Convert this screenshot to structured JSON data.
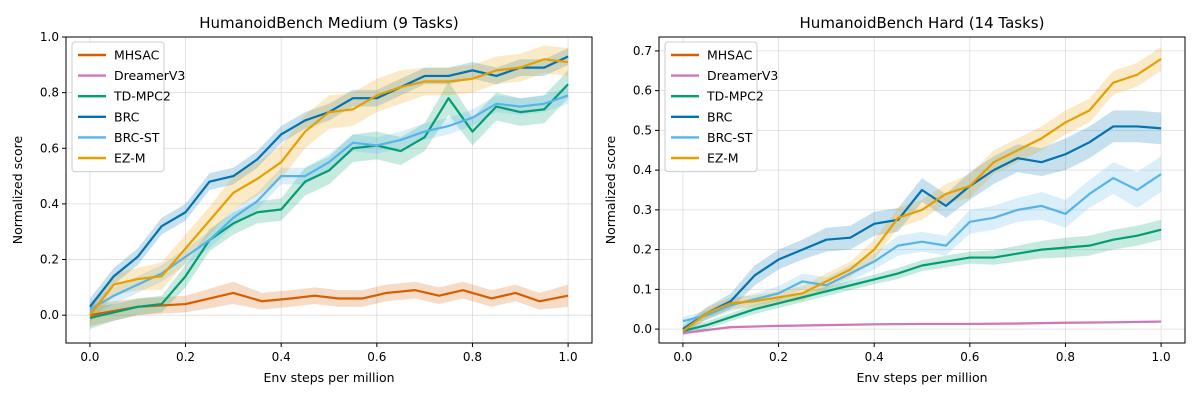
{
  "chart_data": [
    {
      "type": "line",
      "title": "HumanoidBench Medium (9 Tasks)",
      "xlabel": "Env steps per million",
      "ylabel": "Normalized score",
      "xlim": [
        -0.05,
        1.05
      ],
      "ylim": [
        -0.1,
        1.0
      ],
      "xticks": [
        0.0,
        0.2,
        0.4,
        0.6,
        0.8,
        1.0
      ],
      "yticks": [
        0.0,
        0.2,
        0.4,
        0.6,
        0.8,
        1.0
      ],
      "xtick_labels": [
        "0.0",
        "0.2",
        "0.4",
        "0.6",
        "0.8",
        "1.0"
      ],
      "ytick_labels": [
        "0.0",
        "0.2",
        "0.4",
        "0.6",
        "0.8",
        "1.0"
      ],
      "grid": true,
      "legend_loc": "upper-left",
      "series": [
        {
          "name": "MHSAC",
          "color": "#d55e00",
          "x": [
            0,
            0.1,
            0.2,
            0.3,
            0.36,
            0.42,
            0.47,
            0.52,
            0.57,
            0.62,
            0.68,
            0.73,
            0.78,
            0.84,
            0.89,
            0.94,
            1.0
          ],
          "y": [
            0.0,
            0.03,
            0.04,
            0.08,
            0.05,
            0.06,
            0.07,
            0.06,
            0.06,
            0.08,
            0.09,
            0.07,
            0.09,
            0.06,
            0.08,
            0.05,
            0.07
          ],
          "err": [
            0.04,
            0.03,
            0.03,
            0.04,
            0.03,
            0.03,
            0.03,
            0.03,
            0.03,
            0.03,
            0.03,
            0.03,
            0.03,
            0.03,
            0.03,
            0.03,
            0.04
          ]
        },
        {
          "name": "DreamerV3",
          "color": "#cc78bc",
          "x": [],
          "y": [],
          "err": []
        },
        {
          "name": "TD-MPC2",
          "color": "#029e73",
          "x": [
            0,
            0.05,
            0.1,
            0.15,
            0.2,
            0.25,
            0.3,
            0.35,
            0.4,
            0.45,
            0.5,
            0.55,
            0.6,
            0.65,
            0.7,
            0.75,
            0.8,
            0.85,
            0.9,
            0.95,
            1.0
          ],
          "y": [
            -0.01,
            0.01,
            0.03,
            0.04,
            0.14,
            0.27,
            0.33,
            0.37,
            0.38,
            0.48,
            0.52,
            0.6,
            0.61,
            0.59,
            0.64,
            0.78,
            0.66,
            0.75,
            0.73,
            0.74,
            0.83
          ],
          "err": [
            0.04,
            0.03,
            0.03,
            0.03,
            0.04,
            0.04,
            0.04,
            0.04,
            0.04,
            0.05,
            0.05,
            0.05,
            0.05,
            0.05,
            0.05,
            0.06,
            0.05,
            0.05,
            0.05,
            0.05,
            0.05
          ]
        },
        {
          "name": "BRC",
          "color": "#0173b2",
          "x": [
            0,
            0.05,
            0.1,
            0.15,
            0.2,
            0.25,
            0.3,
            0.35,
            0.4,
            0.45,
            0.5,
            0.55,
            0.6,
            0.65,
            0.7,
            0.75,
            0.8,
            0.85,
            0.9,
            0.95,
            1.0
          ],
          "y": [
            0.03,
            0.14,
            0.21,
            0.32,
            0.37,
            0.48,
            0.5,
            0.56,
            0.65,
            0.7,
            0.73,
            0.78,
            0.78,
            0.82,
            0.86,
            0.86,
            0.88,
            0.86,
            0.89,
            0.89,
            0.93
          ],
          "err": [
            0.03,
            0.03,
            0.03,
            0.03,
            0.03,
            0.03,
            0.03,
            0.03,
            0.03,
            0.03,
            0.03,
            0.03,
            0.03,
            0.03,
            0.03,
            0.03,
            0.03,
            0.03,
            0.03,
            0.03,
            0.03
          ]
        },
        {
          "name": "BRC-ST",
          "color": "#56b4e9",
          "x": [
            0,
            0.05,
            0.1,
            0.15,
            0.2,
            0.25,
            0.3,
            0.35,
            0.4,
            0.45,
            0.5,
            0.55,
            0.6,
            0.65,
            0.7,
            0.75,
            0.8,
            0.85,
            0.9,
            0.95,
            1.0
          ],
          "y": [
            0.02,
            0.07,
            0.11,
            0.15,
            0.21,
            0.27,
            0.35,
            0.41,
            0.5,
            0.5,
            0.55,
            0.62,
            0.61,
            0.63,
            0.66,
            0.68,
            0.71,
            0.76,
            0.75,
            0.76,
            0.79
          ],
          "err": [
            0.03,
            0.03,
            0.03,
            0.03,
            0.03,
            0.03,
            0.03,
            0.03,
            0.03,
            0.03,
            0.03,
            0.03,
            0.03,
            0.03,
            0.03,
            0.03,
            0.03,
            0.03,
            0.03,
            0.03,
            0.03
          ]
        },
        {
          "name": "EZ-M",
          "color": "#e69f00",
          "x": [
            0,
            0.05,
            0.1,
            0.15,
            0.2,
            0.25,
            0.3,
            0.35,
            0.4,
            0.45,
            0.5,
            0.55,
            0.6,
            0.65,
            0.7,
            0.75,
            0.8,
            0.85,
            0.9,
            0.95,
            1.0
          ],
          "y": [
            0.0,
            0.11,
            0.13,
            0.14,
            0.24,
            0.34,
            0.44,
            0.49,
            0.55,
            0.66,
            0.73,
            0.74,
            0.79,
            0.82,
            0.84,
            0.84,
            0.85,
            0.88,
            0.89,
            0.92,
            0.91
          ],
          "err": [
            0.03,
            0.04,
            0.04,
            0.05,
            0.05,
            0.05,
            0.06,
            0.06,
            0.06,
            0.06,
            0.06,
            0.06,
            0.06,
            0.06,
            0.05,
            0.05,
            0.05,
            0.05,
            0.05,
            0.05,
            0.05
          ]
        }
      ]
    },
    {
      "type": "line",
      "title": "HumanoidBench Hard (14 Tasks)",
      "xlabel": "Env steps per million",
      "ylabel": "Normalized score",
      "xlim": [
        -0.05,
        1.05
      ],
      "ylim": [
        -0.035,
        0.735
      ],
      "xticks": [
        0.0,
        0.2,
        0.4,
        0.6,
        0.8,
        1.0
      ],
      "yticks": [
        0.0,
        0.1,
        0.2,
        0.3,
        0.4,
        0.5,
        0.6,
        0.7
      ],
      "xtick_labels": [
        "0.0",
        "0.2",
        "0.4",
        "0.6",
        "0.8",
        "1.0"
      ],
      "ytick_labels": [
        "0.0",
        "0.1",
        "0.2",
        "0.3",
        "0.4",
        "0.5",
        "0.6",
        "0.7"
      ],
      "grid": true,
      "legend_loc": "upper-left",
      "series": [
        {
          "name": "MHSAC",
          "color": "#d55e00",
          "x": [],
          "y": [],
          "err": []
        },
        {
          "name": "DreamerV3",
          "color": "#cc78bc",
          "x": [
            0,
            0.1,
            0.2,
            0.3,
            0.4,
            0.5,
            0.6,
            0.7,
            0.8,
            0.9,
            1.0
          ],
          "y": [
            -0.01,
            0.005,
            0.008,
            0.01,
            0.012,
            0.013,
            0.013,
            0.014,
            0.016,
            0.017,
            0.019
          ],
          "err": [
            0.005,
            0.003,
            0.003,
            0.003,
            0.003,
            0.003,
            0.003,
            0.003,
            0.003,
            0.003,
            0.003
          ]
        },
        {
          "name": "TD-MPC2",
          "color": "#029e73",
          "x": [
            0,
            0.05,
            0.1,
            0.15,
            0.2,
            0.25,
            0.3,
            0.35,
            0.4,
            0.45,
            0.5,
            0.55,
            0.6,
            0.65,
            0.7,
            0.75,
            0.8,
            0.85,
            0.9,
            0.95,
            1.0
          ],
          "y": [
            -0.005,
            0.01,
            0.03,
            0.05,
            0.065,
            0.08,
            0.095,
            0.11,
            0.125,
            0.14,
            0.16,
            0.17,
            0.18,
            0.18,
            0.19,
            0.2,
            0.205,
            0.21,
            0.225,
            0.235,
            0.25
          ],
          "err": [
            0.01,
            0.01,
            0.01,
            0.012,
            0.012,
            0.012,
            0.012,
            0.012,
            0.012,
            0.014,
            0.014,
            0.015,
            0.015,
            0.018,
            0.02,
            0.022,
            0.025,
            0.025,
            0.025,
            0.025,
            0.025
          ]
        },
        {
          "name": "BRC",
          "color": "#0173b2",
          "x": [
            0,
            0.05,
            0.1,
            0.15,
            0.2,
            0.25,
            0.3,
            0.35,
            0.4,
            0.45,
            0.5,
            0.55,
            0.6,
            0.65,
            0.7,
            0.75,
            0.8,
            0.85,
            0.9,
            0.95,
            1.0
          ],
          "y": [
            0.0,
            0.04,
            0.07,
            0.135,
            0.175,
            0.2,
            0.225,
            0.23,
            0.265,
            0.275,
            0.35,
            0.31,
            0.36,
            0.4,
            0.43,
            0.42,
            0.44,
            0.47,
            0.51,
            0.51,
            0.505
          ],
          "err": [
            0.01,
            0.015,
            0.02,
            0.025,
            0.025,
            0.025,
            0.03,
            0.03,
            0.03,
            0.03,
            0.03,
            0.03,
            0.035,
            0.035,
            0.035,
            0.035,
            0.04,
            0.04,
            0.04,
            0.04,
            0.04
          ]
        },
        {
          "name": "BRC-ST",
          "color": "#56b4e9",
          "x": [
            0,
            0.05,
            0.1,
            0.15,
            0.2,
            0.25,
            0.3,
            0.35,
            0.4,
            0.45,
            0.5,
            0.55,
            0.6,
            0.65,
            0.7,
            0.75,
            0.8,
            0.85,
            0.9,
            0.95,
            1.0
          ],
          "y": [
            0.02,
            0.035,
            0.06,
            0.075,
            0.09,
            0.12,
            0.11,
            0.14,
            0.17,
            0.21,
            0.22,
            0.21,
            0.27,
            0.28,
            0.3,
            0.31,
            0.29,
            0.34,
            0.38,
            0.35,
            0.39
          ],
          "err": [
            0.01,
            0.012,
            0.015,
            0.015,
            0.018,
            0.02,
            0.02,
            0.02,
            0.02,
            0.025,
            0.025,
            0.025,
            0.03,
            0.03,
            0.03,
            0.035,
            0.035,
            0.035,
            0.04,
            0.045,
            0.045
          ]
        },
        {
          "name": "EZ-M",
          "color": "#e69f00",
          "x": [
            0,
            0.05,
            0.1,
            0.15,
            0.2,
            0.25,
            0.3,
            0.35,
            0.4,
            0.45,
            0.5,
            0.55,
            0.6,
            0.65,
            0.7,
            0.75,
            0.8,
            0.85,
            0.9,
            0.95,
            1.0
          ],
          "y": [
            -0.005,
            0.04,
            0.065,
            0.07,
            0.08,
            0.09,
            0.12,
            0.15,
            0.2,
            0.28,
            0.3,
            0.34,
            0.36,
            0.42,
            0.45,
            0.48,
            0.52,
            0.55,
            0.62,
            0.64,
            0.68
          ],
          "err": [
            0.01,
            0.015,
            0.015,
            0.015,
            0.015,
            0.018,
            0.02,
            0.02,
            0.025,
            0.025,
            0.025,
            0.025,
            0.03,
            0.03,
            0.03,
            0.03,
            0.03,
            0.03,
            0.03,
            0.03,
            0.03
          ]
        }
      ]
    }
  ]
}
